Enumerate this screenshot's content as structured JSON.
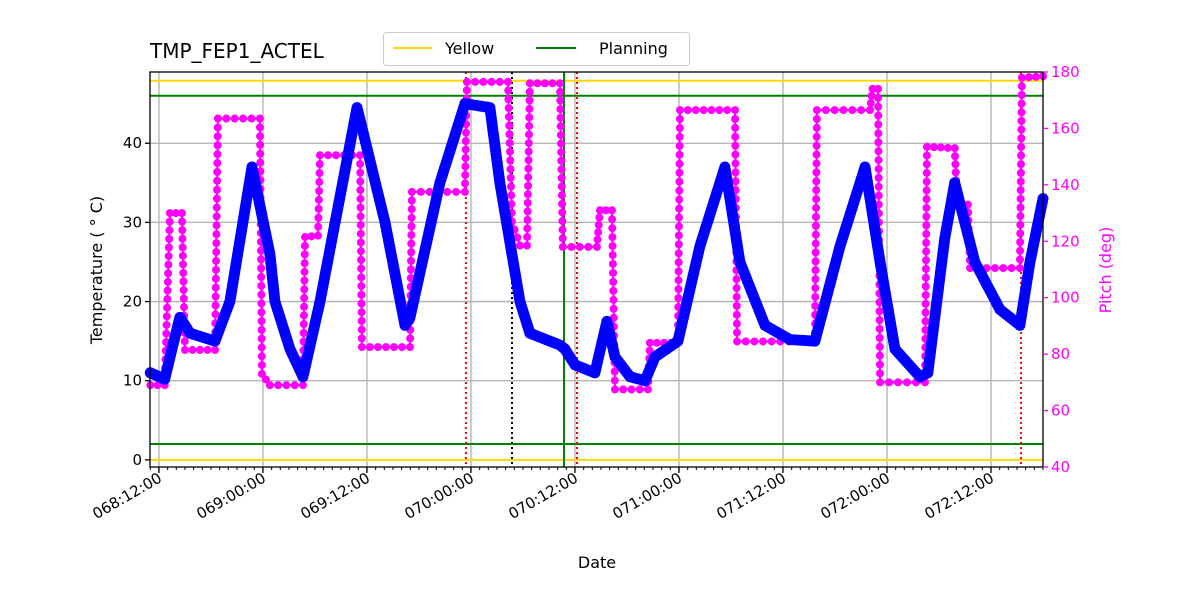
{
  "chart_data": {
    "type": "line",
    "title": "TMP_FEP1_ACTEL",
    "xlabel": "Date",
    "ylabel": "Temperature ($^\\circ$C)",
    "ylabel_display": "Temperature ( ° C)",
    "y2label": "Pitch (deg)",
    "xlim": [
      "068:10:58",
      "072:18:00"
    ],
    "ylim": [
      -0.9,
      49
    ],
    "y2lim": [
      40,
      180
    ],
    "grid": true,
    "legend_placement": "top-center",
    "x_ticks": [
      "068:12:00",
      "069:00:00",
      "069:12:00",
      "070:00:00",
      "070:12:00",
      "071:00:00",
      "071:12:00",
      "072:00:00",
      "072:12:00"
    ],
    "y_ticks": [
      0,
      10,
      20,
      30,
      40
    ],
    "y2_ticks": [
      40,
      60,
      80,
      100,
      120,
      140,
      160,
      180
    ],
    "legend": [
      {
        "name": "Yellow",
        "color": "#ffd700"
      },
      {
        "name": "Planning",
        "color": "#008000"
      }
    ],
    "limit_lines": [
      {
        "name": "Yellow",
        "values": [
          47.9,
          0.0
        ],
        "color": "#ffd700"
      },
      {
        "name": "Planning",
        "values": [
          46.0,
          2.0
        ],
        "color": "#008000"
      }
    ],
    "vertical_lines": [
      {
        "x": "069:23:25",
        "color": "#ff0000",
        "style": "dotted"
      },
      {
        "x": "070:04:44",
        "color": "#000000",
        "style": "dotted"
      },
      {
        "x": "070:10:44",
        "color": "#008000",
        "style": "solid"
      },
      {
        "x": "070:12:14",
        "color": "#ff0000",
        "style": "dotted"
      },
      {
        "x": "072:15:28",
        "color": "#ff0000",
        "style": "dotted"
      }
    ],
    "series": [
      {
        "axis": "left",
        "color": "#0000ff",
        "points": [
          [
            "068:11:00",
            11
          ],
          [
            "068:12:40",
            10.2
          ],
          [
            "068:13:30",
            14
          ],
          [
            "068:14:25",
            18
          ],
          [
            "068:15:35",
            16
          ],
          [
            "068:18:28",
            15
          ],
          [
            "068:20:11",
            20
          ],
          [
            "068:22:44",
            37
          ],
          [
            "069:00:48",
            26
          ],
          [
            "069:01:23",
            20
          ],
          [
            "069:03:07",
            14
          ],
          [
            "069:04:37",
            10.5
          ],
          [
            "069:06:35",
            20
          ],
          [
            "069:10:51",
            44.5
          ],
          [
            "069:11:25",
            42
          ],
          [
            "069:14:05",
            30
          ],
          [
            "069:16:23",
            17
          ],
          [
            "069:16:58",
            18
          ],
          [
            "069:20:25",
            35
          ],
          [
            "069:23:18",
            45
          ],
          [
            "070:02:11",
            44.5
          ],
          [
            "070:03:20",
            35
          ],
          [
            "070:05:39",
            20
          ],
          [
            "070:06:48",
            16
          ],
          [
            "070:10:16",
            14.5
          ],
          [
            "070:10:50",
            14
          ],
          [
            "070:12:00",
            12
          ],
          [
            "070:14:18",
            11
          ],
          [
            "070:15:41",
            17.5
          ],
          [
            "070:16:37",
            13
          ],
          [
            "070:18:21",
            10.5
          ],
          [
            "070:20:05",
            10
          ],
          [
            "070:21:14",
            13
          ],
          [
            "070:23:53",
            15
          ],
          [
            "071:02:25",
            27
          ],
          [
            "071:05:18",
            37
          ],
          [
            "071:07:02",
            25
          ],
          [
            "071:09:55",
            17
          ],
          [
            "071:12:48",
            15.2
          ],
          [
            "071:15:41",
            15
          ],
          [
            "071:18:35",
            27
          ],
          [
            "071:21:28",
            37
          ],
          [
            "071:23:12",
            25
          ],
          [
            "072:00:55",
            14
          ],
          [
            "072:03:48",
            10.5
          ],
          [
            "072:04:43",
            11
          ],
          [
            "072:06:40",
            28
          ],
          [
            "072:07:49",
            35
          ],
          [
            "072:10:08",
            25
          ],
          [
            "072:13:02",
            19
          ],
          [
            "072:15:20",
            17
          ],
          [
            "072:16:30",
            25
          ],
          [
            "072:18:00",
            33
          ]
        ]
      },
      {
        "axis": "right",
        "color": "#ff00ff",
        "points": [
          [
            "068:11:00",
            69
          ],
          [
            "068:12:40",
            69
          ],
          [
            "068:13:16",
            130
          ],
          [
            "068:14:39",
            130
          ],
          [
            "068:15:00",
            81.5
          ],
          [
            "068:18:28",
            81.5
          ],
          [
            "068:18:48",
            163.5
          ],
          [
            "068:23:39",
            163.5
          ],
          [
            "068:23:53",
            73
          ],
          [
            "069:00:48",
            69
          ],
          [
            "069:04:37",
            69
          ],
          [
            "069:04:51",
            121.5
          ],
          [
            "069:06:21",
            122
          ],
          [
            "069:06:35",
            150.5
          ],
          [
            "069:11:12",
            150.5
          ],
          [
            "069:11:25",
            82.5
          ],
          [
            "069:16:58",
            82.5
          ],
          [
            "069:17:11",
            137.5
          ],
          [
            "069:23:18",
            137.5
          ],
          [
            "069:23:32",
            176.5
          ],
          [
            "070:04:16",
            176.5
          ],
          [
            "070:04:44",
            127
          ],
          [
            "070:05:39",
            118.5
          ],
          [
            "070:06:28",
            118.5
          ],
          [
            "070:06:48",
            176
          ],
          [
            "070:10:16",
            176
          ],
          [
            "070:10:36",
            118
          ],
          [
            "070:14:32",
            118
          ],
          [
            "070:14:53",
            131
          ],
          [
            "070:16:16",
            131
          ],
          [
            "070:16:37",
            67.5
          ],
          [
            "070:20:25",
            67.5
          ],
          [
            "070:20:39",
            84
          ],
          [
            "070:23:53",
            84
          ],
          [
            "071:00:07",
            166.5
          ],
          [
            "071:06:28",
            166.5
          ],
          [
            "071:06:42",
            84.5
          ],
          [
            "071:15:41",
            84.5
          ],
          [
            "071:15:55",
            166.5
          ],
          [
            "071:22:02",
            166.5
          ],
          [
            "071:22:20",
            174
          ],
          [
            "071:22:58",
            174
          ],
          [
            "071:23:12",
            70
          ],
          [
            "072:04:23",
            70
          ],
          [
            "072:04:37",
            153.5
          ],
          [
            "072:07:49",
            153
          ],
          [
            "072:08:05",
            133
          ],
          [
            "072:09:20",
            133
          ],
          [
            "072:09:35",
            110.5
          ],
          [
            "072:15:20",
            110.5
          ],
          [
            "072:15:34",
            178
          ],
          [
            "072:18:00",
            178.5
          ]
        ]
      }
    ]
  }
}
